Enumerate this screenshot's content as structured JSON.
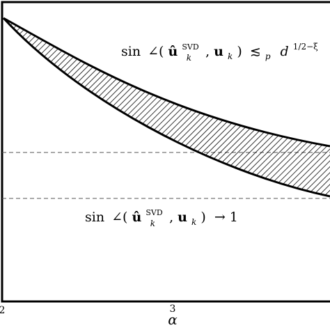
{
  "figure": {
    "annotations": {
      "upper": {
        "sin": "sin",
        "angle": "∠(",
        "u": "û",
        "sup": "SVD",
        "sub": "k",
        "mid": ", ",
        "u2": "u",
        "sub2": "k",
        "close": ")",
        "rel": "≲",
        "rel_sub": "p",
        "d": "d",
        "exp": "1/2−ξ"
      },
      "lower": {
        "sin": "sin",
        "angle": "∠(",
        "u": "û",
        "sup": "SVD",
        "sub": "k",
        "mid": ", ",
        "u2": "u",
        "sub2": "k",
        "close": ")",
        "arrow": "→ 1"
      }
    },
    "x_axis": {
      "label": "α",
      "ticks": [
        "2",
        "3"
      ]
    },
    "colors": {
      "stroke": "#000000",
      "hatch": "#000000",
      "dashed": "#555555"
    }
  }
}
